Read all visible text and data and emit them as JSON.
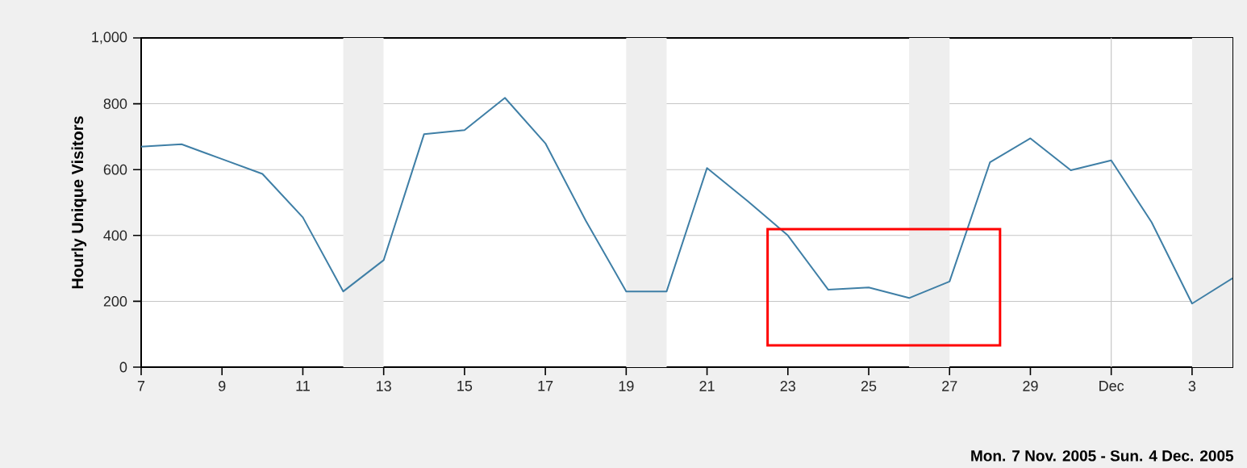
{
  "chart_data": {
    "type": "line",
    "ylabel": "Hourly Unique Visitors",
    "x": [
      "2005-11-07",
      "2005-11-08",
      "2005-11-09",
      "2005-11-10",
      "2005-11-11",
      "2005-11-12",
      "2005-11-13",
      "2005-11-14",
      "2005-11-15",
      "2005-11-16",
      "2005-11-17",
      "2005-11-18",
      "2005-11-19",
      "2005-11-20",
      "2005-11-21",
      "2005-11-22",
      "2005-11-23",
      "2005-11-24",
      "2005-11-25",
      "2005-11-26",
      "2005-11-27",
      "2005-11-28",
      "2005-11-29",
      "2005-11-30",
      "2005-12-01",
      "2005-12-02",
      "2005-12-03",
      "2005-12-04"
    ],
    "series": [
      {
        "color": "#3f7fa6",
        "values": [
          670,
          677,
          632,
          587,
          455,
          230,
          325,
          708,
          720,
          818,
          680,
          445,
          230,
          230,
          605,
          505,
          400,
          235,
          242,
          210,
          260,
          622,
          695,
          598,
          628,
          440,
          193,
          270
        ]
      }
    ],
    "xlim": [
      "2005-11-07",
      "2005-12-04"
    ],
    "xticks": [
      {
        "value": "2005-11-07",
        "label": "7"
      },
      {
        "value": "2005-11-09",
        "label": "9"
      },
      {
        "value": "2005-11-11",
        "label": "11"
      },
      {
        "value": "2005-11-13",
        "label": "13"
      },
      {
        "value": "2005-11-15",
        "label": "15"
      },
      {
        "value": "2005-11-17",
        "label": "17"
      },
      {
        "value": "2005-11-19",
        "label": "19"
      },
      {
        "value": "2005-11-21",
        "label": "21"
      },
      {
        "value": "2005-11-23",
        "label": "23"
      },
      {
        "value": "2005-11-25",
        "label": "25"
      },
      {
        "value": "2005-11-27",
        "label": "27"
      },
      {
        "value": "2005-11-29",
        "label": "29"
      },
      {
        "value": "2005-12-01",
        "label": "Dec"
      },
      {
        "value": "2005-12-03",
        "label": "3"
      }
    ],
    "ylim": [
      0,
      1000
    ],
    "yticks": [
      0,
      200,
      400,
      600,
      800,
      {
        "value": 1000,
        "label": "1,000"
      }
    ],
    "grid": "y",
    "ref_lines": [
      {
        "axis": "x",
        "value": "2005-12-01",
        "color": "#c8c8c8"
      }
    ],
    "bands": [
      {
        "axis": "x",
        "from": "2005-11-12",
        "to": "2005-11-13",
        "color": "#eeeeee"
      },
      {
        "axis": "x",
        "from": "2005-11-19",
        "to": "2005-11-20",
        "color": "#eeeeee"
      },
      {
        "axis": "x",
        "from": "2005-11-26",
        "to": "2005-11-27",
        "color": "#eeeeee"
      },
      {
        "axis": "x",
        "from": "2005-12-03",
        "to": "2005-12-04",
        "color": "#eeeeee"
      }
    ],
    "annotations": [
      "Mon.  7 Nov. 2005 - Sun.  4 Dec. 2005"
    ]
  }
}
